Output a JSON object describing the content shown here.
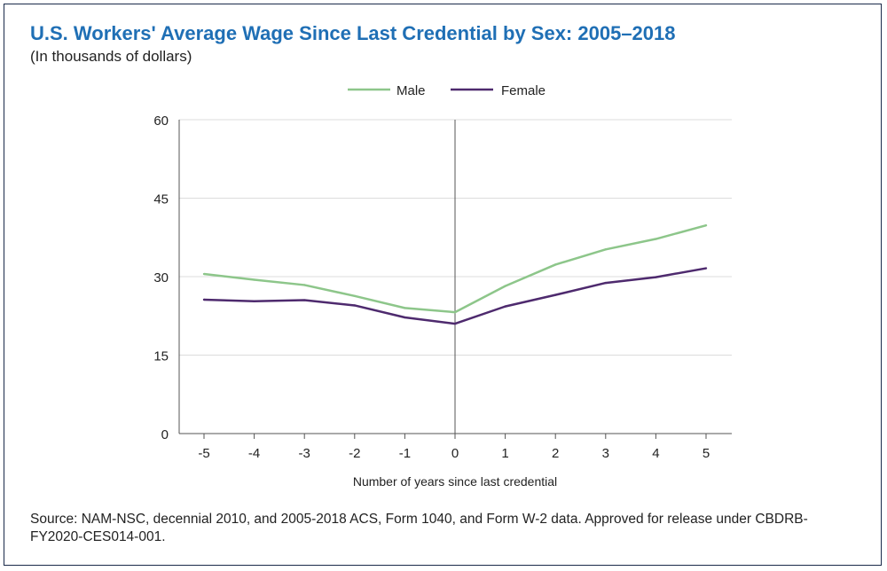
{
  "title": "U.S. Workers' Average Wage Since Last Credential by Sex: 2005–2018",
  "subtitle": "(In thousands of dollars)",
  "source": "Source: NAM-NSC, decennial 2010, and 2005-2018 ACS, Form 1040, and Form W-2 data. Approved for release under CBDRB-FY2020-CES014-001.",
  "chart_data": {
    "type": "line",
    "title": "U.S. Workers' Average Wage Since Last Credential by Sex: 2005–2018",
    "subtitle": "(In thousands of dollars)",
    "xlabel": "Number of years since last credential",
    "ylabel": "",
    "x": [
      -5,
      -4,
      -3,
      -2,
      -1,
      0,
      1,
      2,
      3,
      4,
      5
    ],
    "x_tick_labels": [
      "-5",
      "-4",
      "-3",
      "-2",
      "-1",
      "0",
      "1",
      "2",
      "3",
      "4",
      "5"
    ],
    "ylim": [
      0,
      60
    ],
    "y_ticks": [
      0,
      15,
      30,
      45,
      60
    ],
    "grid": "horizontal",
    "reference_line_x": 0,
    "legend_position": "top-center",
    "series": [
      {
        "name": "Male",
        "color": "#8dc68a",
        "values": [
          30.5,
          29.4,
          28.4,
          26.3,
          24.0,
          23.2,
          28.2,
          32.3,
          35.2,
          37.2,
          39.8
        ]
      },
      {
        "name": "Female",
        "color": "#4e2a6e",
        "values": [
          25.6,
          25.3,
          25.5,
          24.5,
          22.2,
          21.0,
          24.3,
          26.5,
          28.8,
          29.9,
          31.6
        ]
      }
    ]
  }
}
